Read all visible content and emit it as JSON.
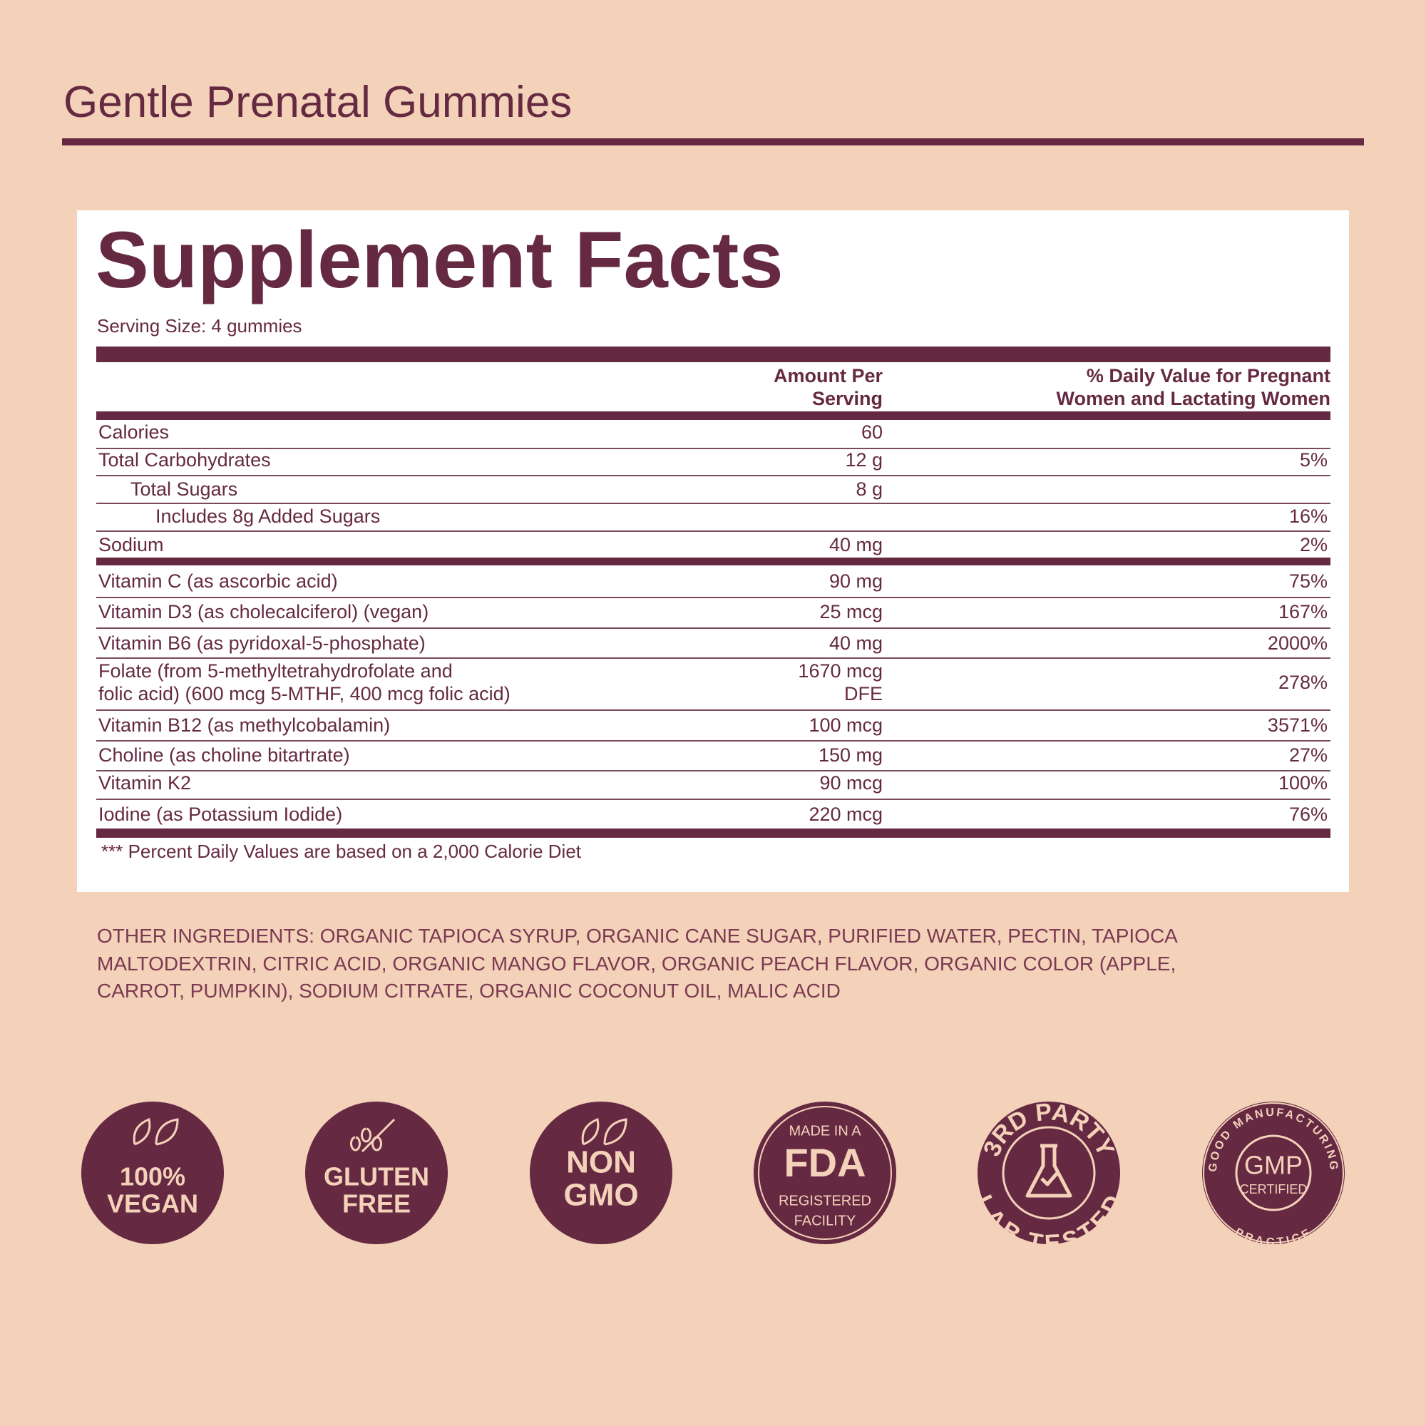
{
  "title": "Gentle Prenatal Gummies",
  "facts": {
    "heading": "Supplement Facts",
    "serving_size": "Serving Size: 4 gummies",
    "columns": [
      [
        "Amount Per",
        "Serving"
      ],
      [
        "% Daily Value for Pregnant",
        "Women and Lactating Women"
      ]
    ],
    "rows": [
      {
        "name": "Calories",
        "amount": "60",
        "dv": ""
      },
      {
        "name": "Total Carbohydrates",
        "amount": "12 g",
        "dv": "5%"
      },
      {
        "name": "Total Sugars",
        "amount": "8 g",
        "dv": ""
      },
      {
        "name": "Includes 8g Added Sugars",
        "amount": "",
        "dv": "16%"
      },
      {
        "name": "Sodium",
        "amount": "40 mg",
        "dv": "2%"
      },
      {
        "name": "Vitamin C (as ascorbic acid)",
        "amount": "90 mg",
        "dv": "75%"
      },
      {
        "name": "Vitamin D3 (as cholecalciferol) (vegan)",
        "amount": "25 mcg",
        "dv": "167%"
      },
      {
        "name": "Vitamin B6 (as pyridoxal-5-phosphate)",
        "amount": "40 mg",
        "dv": "2000%"
      },
      {
        "name": [
          "Folate (from 5-methyltetrahydrofolate and",
          "folic acid) (600 mcg 5-MTHF, 400 mcg folic acid)"
        ],
        "amount": [
          "1670 mcg",
          "DFE"
        ],
        "dv": "278%"
      },
      {
        "name": "Vitamin B12 (as methylcobalamin)",
        "amount": "100 mcg",
        "dv": "3571%"
      },
      {
        "name": "Choline (as choline bitartrate)",
        "amount": "150 mg",
        "dv": "27%"
      },
      {
        "name": "Vitamin K2",
        "amount": "90 mcg",
        "dv": "100%"
      },
      {
        "name": "Iodine (as Potassium Iodide)",
        "amount": "220 mcg",
        "dv": "76%"
      }
    ],
    "footnote": "*** Percent Daily Values are based on a 2,000 Calorie Diet"
  },
  "other_ingredients": [
    "OTHER INGREDIENTS: ORGANIC TAPIOCA SYRUP, ORGANIC CANE SUGAR, PURIFIED WATER, PECTIN, TAPIOCA",
    "MALTODEXTRIN, CITRIC ACID, ORGANIC MANGO FLAVOR, ORGANIC PEACH FLAVOR, ORGANIC COLOR (APPLE,",
    "CARROT, PUMPKIN), SODIUM CITRATE, ORGANIC COCONUT OIL, MALIC ACID"
  ],
  "badges": [
    {
      "lines": [
        "100%",
        "VEGAN"
      ]
    },
    {
      "lines": [
        "GLUTEN",
        "FREE"
      ]
    },
    {
      "lines": [
        "NON",
        "GMO"
      ]
    },
    {
      "lines": [
        "MADE IN A",
        "FDA",
        "REGISTERED",
        "FACILITY"
      ]
    },
    {
      "top_arc": "3RD PARTY",
      "bottom_arc": "LAB TESTED"
    },
    {
      "top_arc": "GOOD MANUFACTURING",
      "bottom_arc": "PRACTICE",
      "lines": [
        "GMP",
        "CERTIFIED"
      ]
    }
  ]
}
